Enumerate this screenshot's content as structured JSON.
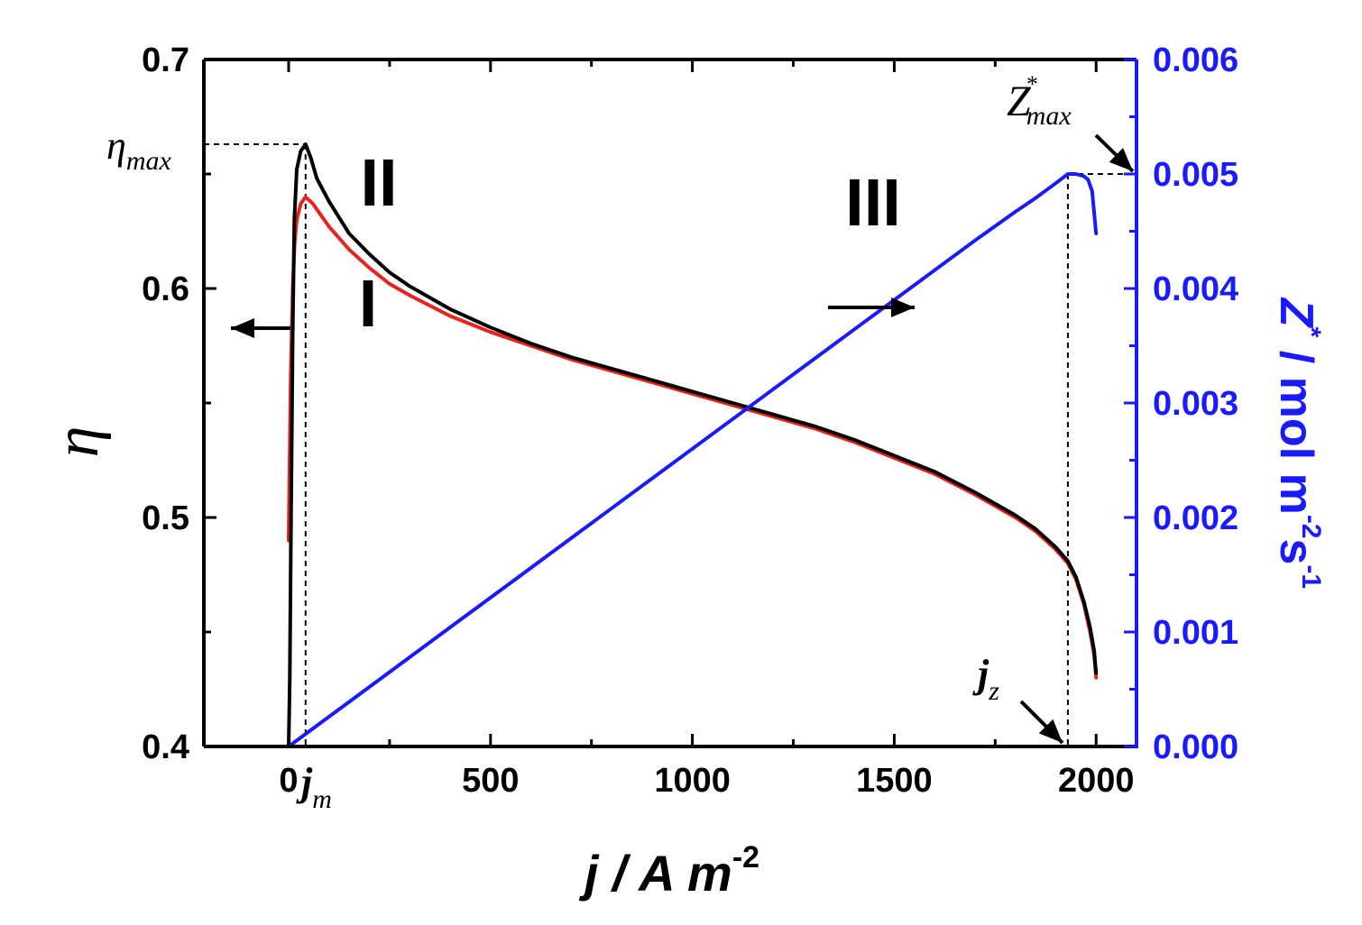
{
  "chart_data": {
    "type": "line",
    "x_axis": {
      "label_main": "j / A m",
      "label_sup": "-2",
      "range": [
        -210,
        2100
      ],
      "ticks": [
        0,
        500,
        1000,
        1500,
        2000
      ],
      "tick_labels": [
        "0",
        "500",
        "1000",
        "1500",
        "2000"
      ]
    },
    "y_left": {
      "label": "η",
      "range": [
        0.4,
        0.7
      ],
      "ticks": [
        0.4,
        0.5,
        0.6,
        0.7
      ],
      "tick_labels": [
        "0.4",
        "0.5",
        "0.6",
        "0.7"
      ]
    },
    "y_right": {
      "label_main": "Z",
      "label_star": "*",
      "label_rest": " / mol m",
      "label_sup1": "-2",
      "label_s": "s",
      "label_sup2": "-1",
      "range": [
        0,
        0.006
      ],
      "ticks": [
        0,
        0.001,
        0.002,
        0.003,
        0.004,
        0.005,
        0.006
      ],
      "tick_labels": [
        "0.000",
        "0.001",
        "0.002",
        "0.003",
        "0.004",
        "0.005",
        "0.006"
      ],
      "color": "#1a1aff"
    },
    "series": [
      {
        "id": "I",
        "axis": "left",
        "color": "#e8231b",
        "x": [
          0,
          5,
          10,
          15,
          20,
          30,
          42,
          60,
          80,
          100,
          150,
          200,
          250,
          300,
          400,
          500,
          600,
          700,
          800,
          900,
          1000,
          1100,
          1200,
          1300,
          1400,
          1500,
          1600,
          1700,
          1750,
          1800,
          1850,
          1900,
          1930,
          1950,
          1970,
          1985,
          1995,
          2000
        ],
        "y": [
          0.49,
          0.56,
          0.6,
          0.62,
          0.63,
          0.637,
          0.64,
          0.637,
          0.632,
          0.627,
          0.617,
          0.609,
          0.602,
          0.597,
          0.588,
          0.581,
          0.575,
          0.569,
          0.564,
          0.559,
          0.554,
          0.549,
          0.544,
          0.539,
          0.533,
          0.526,
          0.519,
          0.51,
          0.505,
          0.5,
          0.494,
          0.486,
          0.48,
          0.473,
          0.462,
          0.45,
          0.44,
          0.43
        ]
      },
      {
        "id": "II",
        "axis": "left",
        "color": "#000000",
        "x": [
          0,
          3,
          6,
          10,
          14,
          20,
          30,
          42,
          55,
          70,
          100,
          150,
          200,
          250,
          300,
          400,
          500,
          600,
          700,
          800,
          900,
          1000,
          1100,
          1200,
          1300,
          1400,
          1500,
          1600,
          1700,
          1750,
          1800,
          1850,
          1900,
          1930,
          1950,
          1970,
          1985,
          1995,
          2000
        ],
        "y": [
          0.4,
          0.43,
          0.5,
          0.58,
          0.63,
          0.652,
          0.66,
          0.663,
          0.657,
          0.648,
          0.638,
          0.624,
          0.615,
          0.607,
          0.601,
          0.591,
          0.583,
          0.576,
          0.57,
          0.565,
          0.56,
          0.555,
          0.55,
          0.545,
          0.54,
          0.534,
          0.527,
          0.52,
          0.511,
          0.506,
          0.501,
          0.495,
          0.487,
          0.481,
          0.474,
          0.463,
          0.452,
          0.442,
          0.432
        ]
      },
      {
        "id": "III",
        "axis": "right",
        "color": "#1a1aff",
        "x": [
          0,
          200,
          400,
          600,
          800,
          1000,
          1200,
          1400,
          1600,
          1700,
          1800,
          1850,
          1900,
          1930,
          1950,
          1970,
          1980,
          1990,
          2000
        ],
        "y": [
          0,
          0.00052,
          0.00104,
          0.00156,
          0.00208,
          0.0026,
          0.00312,
          0.00364,
          0.00416,
          0.00442,
          0.00467,
          0.00479,
          0.00492,
          0.005,
          0.005,
          0.00498,
          0.00495,
          0.00485,
          0.00448
        ]
      }
    ],
    "annotations": {
      "region_I": "I",
      "region_II": "II",
      "region_III": "III",
      "eta_max_base": "η",
      "eta_max_sub": "max",
      "z_max_base": "Z",
      "z_max_sup": "*",
      "z_max_sub": "max",
      "j_m_base": "j",
      "j_m_sub": "m",
      "j_z_base": "j",
      "j_z_sub": "z",
      "eta_max_value": 0.663,
      "j_m_value": 42,
      "z_max_value": 0.005,
      "j_z_value": 1930
    },
    "grid": false,
    "legend": "none"
  }
}
